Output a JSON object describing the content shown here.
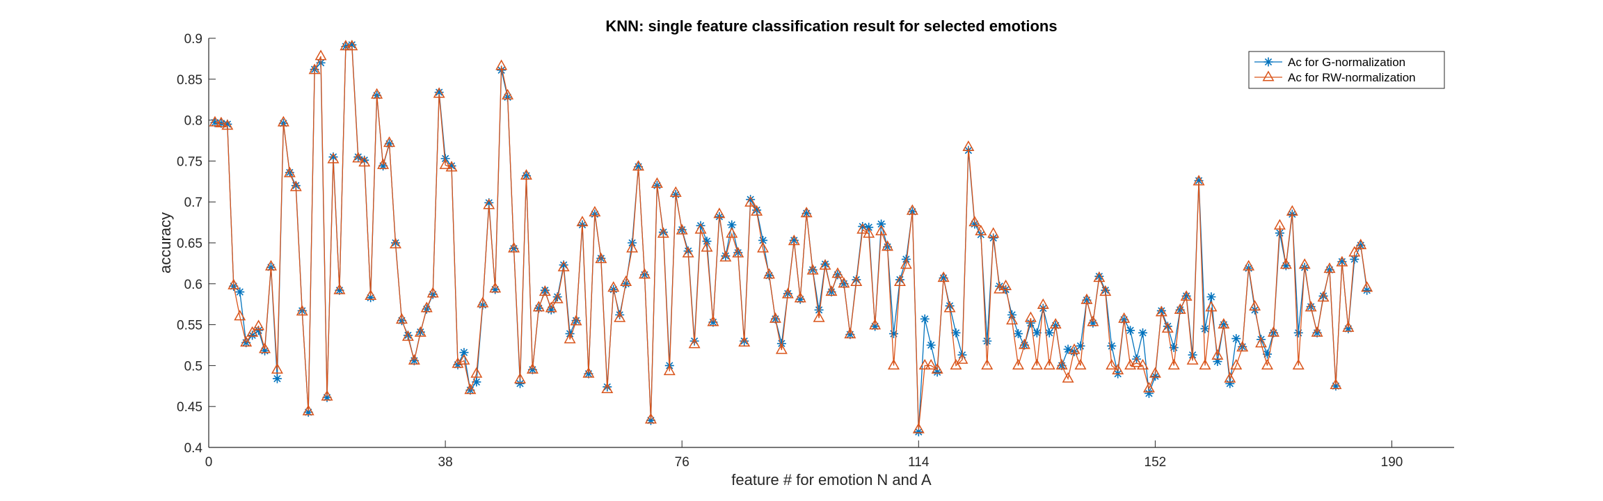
{
  "chart_data": {
    "type": "line",
    "title": "KNN: single feature classification result for selected emotions",
    "xlabel": "feature # for emotion N and A",
    "ylabel": "accuracy",
    "xlim": [
      0,
      200
    ],
    "ylim": [
      0.4,
      0.9
    ],
    "xticks": [
      0,
      38,
      76,
      114,
      152,
      190
    ],
    "yticks": [
      0.4,
      0.45,
      0.5,
      0.55,
      0.6,
      0.65,
      0.7,
      0.75,
      0.8,
      0.85,
      0.9
    ],
    "grid": false,
    "legend_position": "top-right",
    "series": [
      {
        "name": "Ac for G-normalization",
        "color": "#0072BD",
        "marker": "asterisk",
        "values": [
          0.797,
          0.796,
          0.795,
          0.597,
          0.59,
          0.528,
          0.537,
          0.543,
          0.518,
          0.62,
          0.484,
          0.796,
          0.736,
          0.72,
          0.567,
          0.443,
          0.862,
          0.87,
          0.461,
          0.755,
          0.592,
          0.89,
          0.892,
          0.755,
          0.751,
          0.583,
          0.83,
          0.744,
          0.771,
          0.65,
          0.555,
          0.537,
          0.506,
          0.541,
          0.569,
          0.587,
          0.834,
          0.753,
          0.744,
          0.501,
          0.516,
          0.47,
          0.48,
          0.574,
          0.699,
          0.593,
          0.861,
          0.828,
          0.643,
          0.478,
          0.732,
          0.495,
          0.57,
          0.592,
          0.568,
          0.584,
          0.623,
          0.539,
          0.555,
          0.672,
          0.49,
          0.685,
          0.631,
          0.474,
          0.593,
          0.562,
          0.6,
          0.65,
          0.743,
          0.611,
          0.433,
          0.72,
          0.663,
          0.5,
          0.709,
          0.666,
          0.64,
          0.53,
          0.671,
          0.652,
          0.553,
          0.682,
          0.634,
          0.672,
          0.638,
          0.53,
          0.703,
          0.69,
          0.653,
          0.61,
          0.557,
          0.527,
          0.588,
          0.653,
          0.581,
          0.686,
          0.617,
          0.568,
          0.624,
          0.59,
          0.611,
          0.6,
          0.538,
          0.605,
          0.67,
          0.669,
          0.548,
          0.673,
          0.645,
          0.539,
          0.605,
          0.63,
          0.688,
          0.419,
          0.557,
          0.525,
          0.492,
          0.607,
          0.573,
          0.54,
          0.513,
          0.763,
          0.673,
          0.66,
          0.53,
          0.656,
          0.597,
          0.593,
          0.562,
          0.539,
          0.525,
          0.552,
          0.54,
          0.57,
          0.54,
          0.549,
          0.5,
          0.52,
          0.517,
          0.524,
          0.58,
          0.552,
          0.609,
          0.592,
          0.524,
          0.49,
          0.556,
          0.543,
          0.508,
          0.54,
          0.466,
          0.487,
          0.567,
          0.548,
          0.522,
          0.568,
          0.585,
          0.513,
          0.726,
          0.545,
          0.584,
          0.505,
          0.55,
          0.478,
          0.533,
          0.523,
          0.619,
          0.568,
          0.532,
          0.514,
          0.54,
          0.662,
          0.622,
          0.685,
          0.54,
          0.62,
          0.572,
          0.54,
          0.585,
          0.617,
          0.475,
          0.627,
          0.545,
          0.63,
          0.647,
          0.592
        ]
      },
      {
        "name": "Ac for RW-normalization",
        "color": "#D95319",
        "marker": "triangle",
        "values": [
          0.797,
          0.796,
          0.793,
          0.598,
          0.56,
          0.528,
          0.54,
          0.548,
          0.52,
          0.621,
          0.495,
          0.797,
          0.735,
          0.718,
          0.566,
          0.444,
          0.861,
          0.878,
          0.462,
          0.752,
          0.592,
          0.89,
          0.89,
          0.753,
          0.748,
          0.585,
          0.831,
          0.745,
          0.772,
          0.648,
          0.556,
          0.535,
          0.506,
          0.54,
          0.57,
          0.588,
          0.832,
          0.745,
          0.742,
          0.502,
          0.506,
          0.47,
          0.49,
          0.576,
          0.696,
          0.594,
          0.866,
          0.83,
          0.643,
          0.483,
          0.732,
          0.495,
          0.571,
          0.59,
          0.57,
          0.581,
          0.62,
          0.532,
          0.554,
          0.675,
          0.49,
          0.687,
          0.63,
          0.471,
          0.595,
          0.558,
          0.602,
          0.643,
          0.743,
          0.611,
          0.434,
          0.722,
          0.661,
          0.493,
          0.711,
          0.665,
          0.637,
          0.526,
          0.666,
          0.644,
          0.553,
          0.685,
          0.632,
          0.661,
          0.637,
          0.528,
          0.699,
          0.688,
          0.643,
          0.611,
          0.557,
          0.519,
          0.587,
          0.652,
          0.582,
          0.686,
          0.616,
          0.558,
          0.622,
          0.59,
          0.612,
          0.6,
          0.538,
          0.602,
          0.666,
          0.661,
          0.549,
          0.664,
          0.645,
          0.5,
          0.602,
          0.623,
          0.689,
          0.422,
          0.5,
          0.5,
          0.495,
          0.607,
          0.57,
          0.5,
          0.507,
          0.767,
          0.675,
          0.664,
          0.5,
          0.661,
          0.593,
          0.597,
          0.555,
          0.5,
          0.525,
          0.558,
          0.5,
          0.574,
          0.5,
          0.55,
          0.5,
          0.484,
          0.519,
          0.5,
          0.58,
          0.553,
          0.607,
          0.59,
          0.5,
          0.494,
          0.557,
          0.5,
          0.503,
          0.5,
          0.472,
          0.49,
          0.565,
          0.545,
          0.5,
          0.568,
          0.584,
          0.506,
          0.725,
          0.5,
          0.571,
          0.512,
          0.55,
          0.484,
          0.5,
          0.522,
          0.621,
          0.572,
          0.527,
          0.5,
          0.54,
          0.671,
          0.623,
          0.688,
          0.5,
          0.623,
          0.571,
          0.54,
          0.583,
          0.618,
          0.476,
          0.626,
          0.546,
          0.638,
          0.647,
          0.595
        ]
      }
    ]
  }
}
